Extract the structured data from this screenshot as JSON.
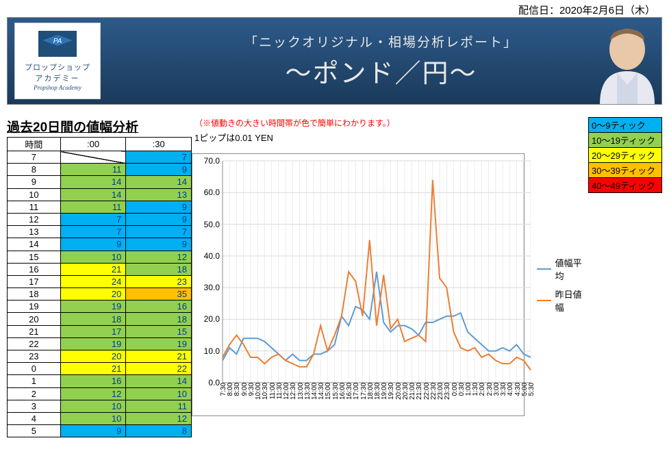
{
  "header": {
    "date_label": "配信日：2020年2月6日（木）",
    "banner_sub": "「ニックオリジナル・相場分析レポート」",
    "banner_main": "〜ポンド／円〜",
    "logo_line1": "プロップショップ",
    "logo_line2": "アカデミー",
    "logo_line3": "Propshop Academy",
    "logo_badge": "PA"
  },
  "section": {
    "title": "過去20日間の値幅分析",
    "note_red": "（※値動きの大きい時間帯が色で簡単にわかります。）",
    "note_pip": "1ピップは0.01 YEN"
  },
  "table": {
    "headers": [
      "時間",
      ":00",
      ":30"
    ],
    "rows": [
      {
        "hour": "7",
        "c00": null,
        "c30": 7
      },
      {
        "hour": "8",
        "c00": 11,
        "c30": 9
      },
      {
        "hour": "9",
        "c00": 14,
        "c30": 14
      },
      {
        "hour": "10",
        "c00": 14,
        "c30": 13
      },
      {
        "hour": "11",
        "c00": 11,
        "c30": 9
      },
      {
        "hour": "12",
        "c00": 7,
        "c30": 9
      },
      {
        "hour": "13",
        "c00": 7,
        "c30": 7
      },
      {
        "hour": "14",
        "c00": 9,
        "c30": 9
      },
      {
        "hour": "15",
        "c00": 10,
        "c30": 12
      },
      {
        "hour": "16",
        "c00": 21,
        "c30": 18
      },
      {
        "hour": "17",
        "c00": 24,
        "c30": 23
      },
      {
        "hour": "18",
        "c00": 20,
        "c30": 35
      },
      {
        "hour": "19",
        "c00": 19,
        "c30": 16
      },
      {
        "hour": "20",
        "c00": 18,
        "c30": 18
      },
      {
        "hour": "21",
        "c00": 17,
        "c30": 15
      },
      {
        "hour": "22",
        "c00": 19,
        "c30": 19
      },
      {
        "hour": "23",
        "c00": 20,
        "c30": 21
      },
      {
        "hour": "0",
        "c00": 21,
        "c30": 22
      },
      {
        "hour": "1",
        "c00": 16,
        "c30": 14
      },
      {
        "hour": "2",
        "c00": 12,
        "c30": 10
      },
      {
        "hour": "3",
        "c00": 10,
        "c30": 11
      },
      {
        "hour": "4",
        "c00": 10,
        "c30": 12
      },
      {
        "hour": "5",
        "c00": 9,
        "c30": 8
      }
    ]
  },
  "color_legend": {
    "bands": [
      {
        "label": "0〜9ティック",
        "color": "#00b0f0"
      },
      {
        "label": "10〜19ティック",
        "color": "#92d050"
      },
      {
        "label": "20〜29ティック",
        "color": "#ffff00"
      },
      {
        "label": "30〜39ティック",
        "color": "#ffc000"
      },
      {
        "label": "40〜49ティック",
        "color": "#ff0000"
      }
    ]
  },
  "chart": {
    "type": "line",
    "ylim": [
      0,
      70
    ],
    "ytick_step": 10,
    "categories": [
      "7:30",
      "8:00",
      "8:30",
      "9:00",
      "9:30",
      "10:00",
      "10:30",
      "11:00",
      "11:30",
      "12:00",
      "12:30",
      "13:00",
      "13:30",
      "14:00",
      "14:30",
      "15:00",
      "15:30",
      "16:00",
      "16:30",
      "17:00",
      "17:30",
      "18:00",
      "18:30",
      "19:00",
      "19:30",
      "20:00",
      "20:30",
      "21:00",
      "21:30",
      "22:00",
      "22:30",
      "23:00",
      "23:30",
      "0:00",
      "0:30",
      "1:00",
      "1:30",
      "2:00",
      "2:30",
      "3:00",
      "3:30",
      "4:00",
      "4:30",
      "5:00",
      "5:30"
    ],
    "series": [
      {
        "name": "値幅平均",
        "color": "#5b9bd5",
        "width": 2,
        "data": [
          7,
          11,
          9,
          14,
          14,
          14,
          13,
          11,
          9,
          7,
          9,
          7,
          7,
          9,
          9,
          10,
          12,
          21,
          18,
          24,
          23,
          20,
          35,
          19,
          16,
          18,
          18,
          17,
          15,
          19,
          19,
          20,
          21,
          21,
          22,
          16,
          14,
          12,
          10,
          10,
          11,
          10,
          12,
          9,
          8
        ]
      },
      {
        "name": "昨日値幅",
        "color": "#ed7d31",
        "width": 2,
        "data": [
          8,
          12,
          15,
          12,
          8,
          8,
          6,
          8,
          9,
          7,
          6,
          5,
          5,
          9,
          18,
          10,
          15,
          21,
          35,
          32,
          21,
          45,
          18,
          34,
          17,
          20,
          13,
          14,
          15,
          13,
          64,
          33,
          30,
          16,
          11,
          10,
          11,
          8,
          9,
          7,
          6,
          6,
          8,
          7,
          4
        ]
      }
    ],
    "grid_color": "#d9d9d9",
    "axis_color": "#888",
    "background": "#ffffff",
    "label_fontsize": 12
  }
}
